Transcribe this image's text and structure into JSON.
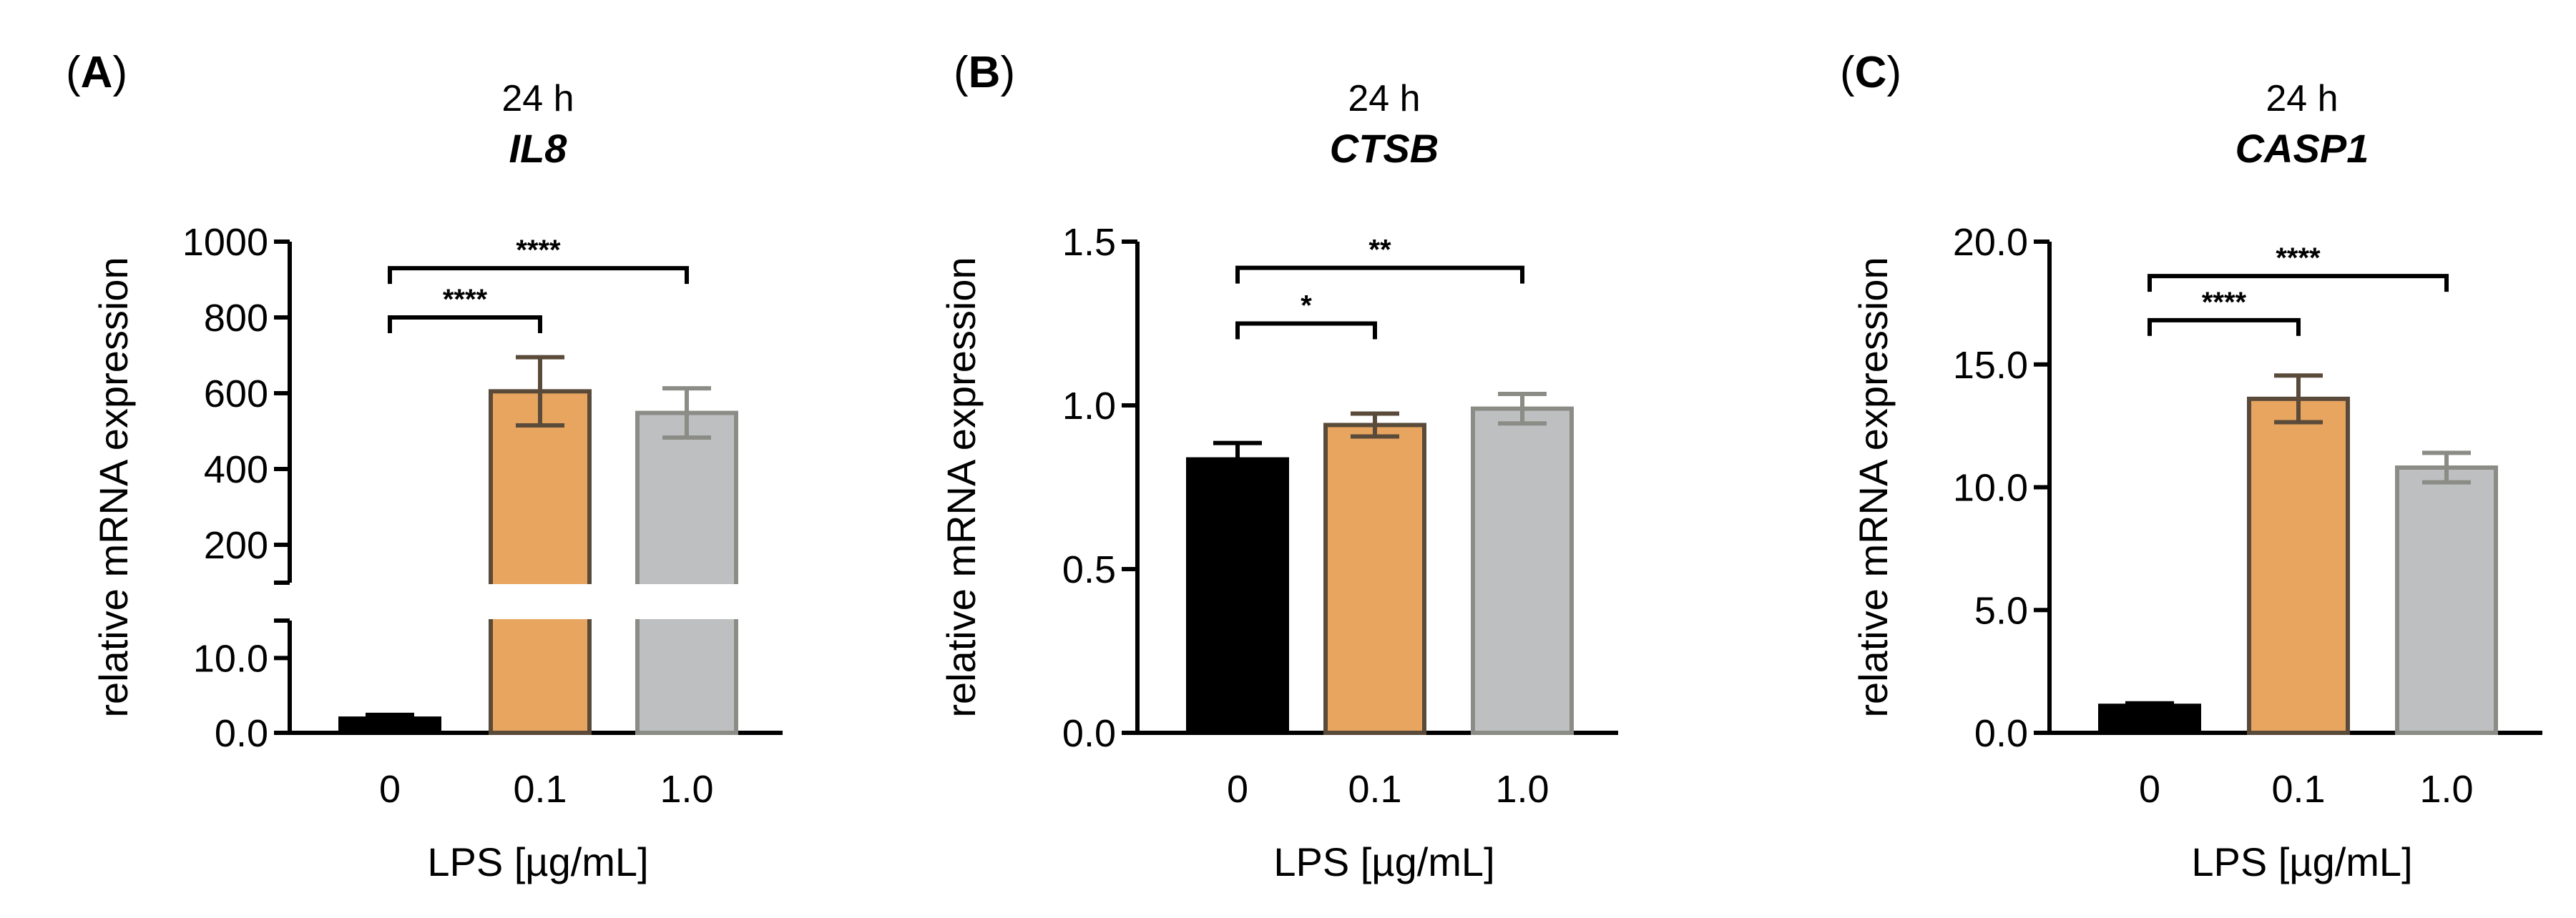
{
  "chart_data": [
    {
      "type": "bar",
      "panel": "A",
      "time": "24 h",
      "gene": "IL8",
      "ylabel": "relative mRNA expression",
      "xlabel": "LPS [µg/mL]",
      "categories": [
        "0",
        "0.1",
        "1.0"
      ],
      "values": [
        1.9,
        605,
        548
      ],
      "errors": [
        0.5,
        90,
        65
      ],
      "bar_colors": [
        "#000000",
        "#E8A560",
        "#BDBFC1"
      ],
      "bar_edges": [
        "#000000",
        "#5A4A3A",
        "#8C8C86"
      ],
      "axis_break": true,
      "lower_segment": {
        "ylim": [
          0,
          15
        ],
        "ticks": [
          0,
          10
        ],
        "tick_labels": [
          "0.0",
          "10.0"
        ]
      },
      "upper_segment": {
        "ylim": [
          100,
          1000
        ],
        "ticks": [
          200,
          400,
          600,
          800,
          1000
        ],
        "tick_labels": [
          "200",
          "400",
          "600",
          "800",
          "1000"
        ]
      },
      "significance": [
        {
          "from": 0,
          "to": 1,
          "label": "****",
          "at": 800
        },
        {
          "from": 0,
          "to": 2,
          "label": "****",
          "at": 930
        }
      ]
    },
    {
      "type": "bar",
      "panel": "B",
      "time": "24 h",
      "gene": "CTSB",
      "ylabel": "relative mRNA expression",
      "xlabel": "LPS [µg/mL]",
      "categories": [
        "0",
        "0.1",
        "1.0"
      ],
      "values": [
        0.835,
        0.94,
        0.99
      ],
      "errors": [
        0.05,
        0.035,
        0.045
      ],
      "bar_colors": [
        "#000000",
        "#E8A560",
        "#BDBFC1"
      ],
      "bar_edges": [
        "#000000",
        "#5A4A3A",
        "#8C8C86"
      ],
      "ylim": [
        0,
        1.5
      ],
      "ticks": [
        0,
        0.5,
        1.0,
        1.5
      ],
      "tick_labels": [
        "0.0",
        "0.5",
        "1.0",
        "1.5"
      ],
      "significance": [
        {
          "from": 0,
          "to": 1,
          "label": "*",
          "at": 1.25
        },
        {
          "from": 0,
          "to": 2,
          "label": "**",
          "at": 1.42
        }
      ]
    },
    {
      "type": "bar",
      "panel": "C",
      "time": "24 h",
      "gene": "CASP1",
      "ylabel": "relative mRNA expression",
      "xlabel": "LPS [µg/mL]",
      "categories": [
        "0",
        "0.1",
        "1.0"
      ],
      "values": [
        1.1,
        13.6,
        10.8
      ],
      "errors": [
        0.1,
        0.95,
        0.6
      ],
      "bar_colors": [
        "#000000",
        "#E8A560",
        "#BDBFC1"
      ],
      "bar_edges": [
        "#000000",
        "#5A4A3A",
        "#8C8C86"
      ],
      "ylim": [
        0,
        20
      ],
      "ticks": [
        0,
        5,
        10,
        15,
        20
      ],
      "tick_labels": [
        "0.0",
        "5.0",
        "10.0",
        "15.0",
        "20.0"
      ],
      "significance": [
        {
          "from": 0,
          "to": 1,
          "label": "****",
          "at": 16.8
        },
        {
          "from": 0,
          "to": 2,
          "label": "****",
          "at": 18.6
        }
      ]
    }
  ]
}
